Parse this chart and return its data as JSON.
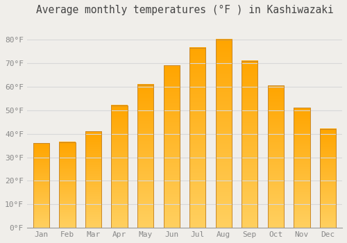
{
  "title": "Average monthly temperatures (°F ) in Kashiwazaki",
  "months": [
    "Jan",
    "Feb",
    "Mar",
    "Apr",
    "May",
    "Jun",
    "Jul",
    "Aug",
    "Sep",
    "Oct",
    "Nov",
    "Dec"
  ],
  "values": [
    36,
    36.5,
    41,
    52,
    61,
    69,
    76.5,
    80,
    71,
    60.5,
    51,
    42
  ],
  "bar_color_main": "#FFA500",
  "bar_color_light": "#FFD060",
  "background_color": "#f0eeea",
  "plot_bg_color": "#f0eeea",
  "grid_color": "#d8d8d8",
  "ylim": [
    0,
    88
  ],
  "yticks": [
    0,
    10,
    20,
    30,
    40,
    50,
    60,
    70,
    80
  ],
  "ytick_labels": [
    "0°F",
    "10°F",
    "20°F",
    "30°F",
    "40°F",
    "50°F",
    "60°F",
    "70°F",
    "80°F"
  ],
  "title_fontsize": 10.5,
  "tick_fontsize": 8,
  "tick_color": "#888888",
  "bar_edge_color": "#c8882a",
  "bar_width": 0.62
}
